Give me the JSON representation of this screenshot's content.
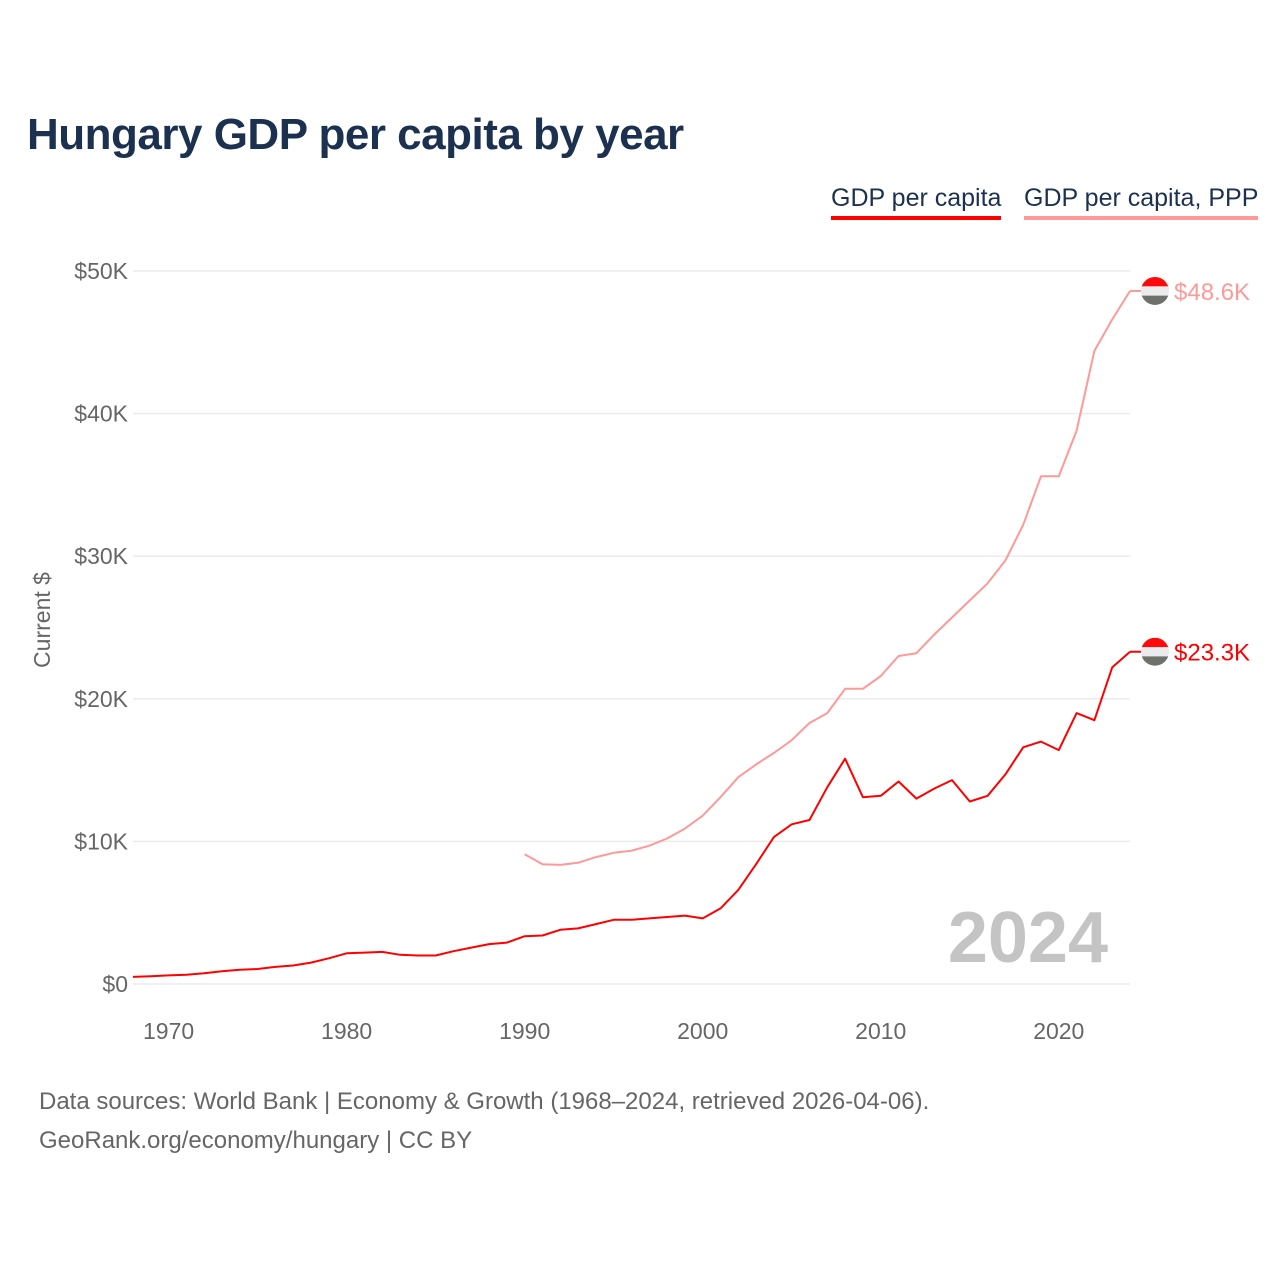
{
  "title": "Hungary GDP per capita by year",
  "legend": [
    {
      "label": "GDP per capita",
      "color": "#ff0000"
    },
    {
      "label": "GDP per capita, PPP",
      "color": "#ff9999"
    }
  ],
  "footer": {
    "line1": "Data sources: World Bank | Economy & Growth (1968–2024, retrieved 2026-04-06).",
    "line2": "GeoRank.org/economy/hungary | CC BY"
  },
  "chart_data": {
    "type": "line",
    "title": "Hungary GDP per capita by year",
    "xlabel": "",
    "ylabel": "Current $",
    "xlim": [
      1968,
      2024
    ],
    "ylim": [
      0,
      50000
    ],
    "x_ticks": [
      1970,
      1980,
      1990,
      2000,
      2010,
      2020
    ],
    "y_ticks": [
      0,
      10000,
      20000,
      30000,
      40000,
      50000
    ],
    "y_tick_labels": [
      "$0",
      "$10K",
      "$20K",
      "$30K",
      "$40K",
      "$50K"
    ],
    "grid": true,
    "legend_position": "top-right",
    "year_watermark": "2024",
    "series": [
      {
        "name": "GDP per capita",
        "color": "#ff0000",
        "end_label": "$23.3K",
        "x": [
          1968,
          1969,
          1970,
          1971,
          1972,
          1973,
          1974,
          1975,
          1976,
          1977,
          1978,
          1979,
          1980,
          1981,
          1982,
          1983,
          1984,
          1985,
          1986,
          1987,
          1988,
          1989,
          1990,
          1991,
          1992,
          1993,
          1994,
          1995,
          1996,
          1997,
          1998,
          1999,
          2000,
          2001,
          2002,
          2003,
          2004,
          2005,
          2006,
          2007,
          2008,
          2009,
          2010,
          2011,
          2012,
          2013,
          2014,
          2015,
          2016,
          2017,
          2018,
          2019,
          2020,
          2021,
          2022,
          2023,
          2024
        ],
        "values": [
          500,
          550,
          600,
          650,
          750,
          900,
          1000,
          1050,
          1200,
          1300,
          1500,
          1800,
          2150,
          2200,
          2250,
          2050,
          2000,
          2000,
          2300,
          2550,
          2800,
          2900,
          3350,
          3400,
          3800,
          3900,
          4200,
          4500,
          4500,
          4600,
          4700,
          4800,
          4600,
          5300,
          6600,
          8400,
          10300,
          11200,
          11500,
          13800,
          15800,
          13100,
          13200,
          14200,
          13000,
          13700,
          14300,
          12800,
          13200,
          14700,
          16600,
          17000,
          16400,
          19000,
          18500,
          22200,
          23300
        ]
      },
      {
        "name": "GDP per capita, PPP",
        "color": "#ff9999",
        "end_label": "$48.6K",
        "x": [
          1990,
          1991,
          1992,
          1993,
          1994,
          1995,
          1996,
          1997,
          1998,
          1999,
          2000,
          2001,
          2002,
          2003,
          2004,
          2005,
          2006,
          2007,
          2008,
          2009,
          2010,
          2011,
          2012,
          2013,
          2014,
          2015,
          2016,
          2017,
          2018,
          2019,
          2020,
          2021,
          2022,
          2023,
          2024
        ],
        "values": [
          9100,
          8400,
          8350,
          8500,
          8900,
          9200,
          9350,
          9700,
          10200,
          10900,
          11800,
          13100,
          14500,
          15400,
          16200,
          17100,
          18300,
          19000,
          20700,
          20700,
          21600,
          23000,
          23200,
          24500,
          25700,
          26900,
          28100,
          29700,
          32200,
          35600,
          35600,
          38800,
          44400,
          46600,
          48600
        ]
      }
    ],
    "flag_colors": [
      "#ff0a0a",
      "#ebebeb",
      "#6e706a"
    ]
  }
}
